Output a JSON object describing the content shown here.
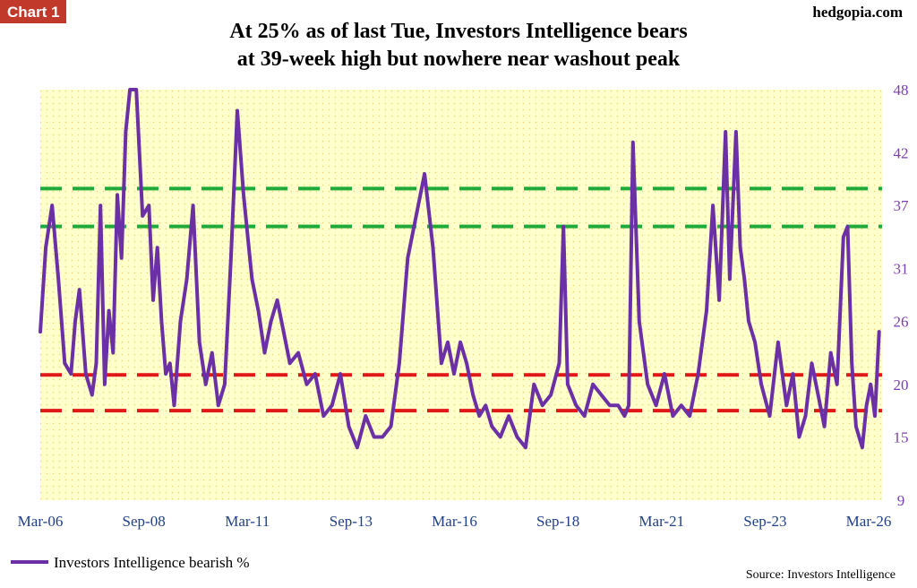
{
  "header": {
    "chart_label": "Chart 1",
    "site": "hedgopia.com",
    "title_line1": "At 25% as of last Tue, Investors Intelligence bears",
    "title_line2": "at 39-week high but nowhere near washout peak"
  },
  "footer": {
    "source": "Source: Investors Intelligence"
  },
  "colors": {
    "series": "#6b2fa6",
    "plot_bg": "#ffffcc",
    "green_line": "#1faa3a",
    "red_line": "#e01818",
    "chart_label_bg": "#c0392b",
    "y_tick": "#7a3fb0",
    "x_tick": "#1f3f8a"
  },
  "chart_data": {
    "type": "line",
    "x_ticks": [
      "Mar-06",
      "Sep-08",
      "Mar-11",
      "Sep-13",
      "Mar-16",
      "Sep-18",
      "Mar-21",
      "Sep-23",
      "Mar-26"
    ],
    "y_ticks": [
      9,
      15,
      20,
      26,
      31,
      37,
      42,
      48
    ],
    "ylim": [
      9,
      48
    ],
    "xlim": [
      2006.17,
      2026.17
    ],
    "grid": false,
    "legend_position": "bottom-left",
    "reference_lines": [
      {
        "value": 38.6,
        "color": "green"
      },
      {
        "value": 35.0,
        "color": "green"
      },
      {
        "value": 20.9,
        "color": "red"
      },
      {
        "value": 17.5,
        "color": "red"
      }
    ],
    "series": [
      {
        "name": "Investors Intelligence bearish %",
        "x": [
          2006.17,
          2006.3,
          2006.45,
          2006.6,
          2006.75,
          2006.9,
          2007.0,
          2007.1,
          2007.25,
          2007.4,
          2007.5,
          2007.6,
          2007.7,
          2007.8,
          2007.9,
          2008.0,
          2008.1,
          2008.2,
          2008.3,
          2008.45,
          2008.6,
          2008.75,
          2008.85,
          2008.95,
          2009.05,
          2009.15,
          2009.25,
          2009.35,
          2009.5,
          2009.65,
          2009.8,
          2009.95,
          2010.1,
          2010.25,
          2010.4,
          2010.55,
          2010.7,
          2010.85,
          2011.0,
          2011.2,
          2011.35,
          2011.5,
          2011.65,
          2011.8,
          2011.95,
          2012.1,
          2012.3,
          2012.5,
          2012.7,
          2012.9,
          2013.1,
          2013.3,
          2013.5,
          2013.7,
          2013.9,
          2014.1,
          2014.3,
          2014.5,
          2014.7,
          2014.9,
          2015.1,
          2015.3,
          2015.5,
          2015.7,
          2015.85,
          2016.0,
          2016.15,
          2016.3,
          2016.45,
          2016.6,
          2016.75,
          2016.9,
          2017.1,
          2017.3,
          2017.5,
          2017.7,
          2017.9,
          2018.1,
          2018.3,
          2018.5,
          2018.6,
          2018.7,
          2018.9,
          2019.1,
          2019.3,
          2019.5,
          2019.7,
          2019.9,
          2020.05,
          2020.15,
          2020.25,
          2020.4,
          2020.6,
          2020.8,
          2021.0,
          2021.2,
          2021.4,
          2021.6,
          2021.8,
          2022.0,
          2022.15,
          2022.3,
          2022.45,
          2022.55,
          2022.7,
          2022.8,
          2022.9,
          2023.0,
          2023.15,
          2023.3,
          2023.5,
          2023.7,
          2023.9,
          2024.05,
          2024.2,
          2024.35,
          2024.5,
          2024.65,
          2024.8,
          2024.95,
          2025.1,
          2025.25,
          2025.35,
          2025.45,
          2025.55,
          2025.7,
          2025.8,
          2025.9,
          2026.0,
          2026.1
        ],
        "values": [
          25,
          33,
          37,
          30,
          22,
          21,
          26,
          29,
          21,
          19,
          22,
          37,
          20,
          27,
          23,
          38,
          32,
          44,
          48,
          48,
          36,
          37,
          28,
          33,
          26,
          21,
          22,
          18,
          26,
          30,
          37,
          24,
          20,
          23,
          18,
          20,
          32,
          46,
          38,
          30,
          27,
          23,
          26,
          28,
          25,
          22,
          23,
          20,
          21,
          17,
          18,
          21,
          16,
          14,
          17,
          15,
          15,
          16,
          22,
          32,
          36,
          40,
          33,
          22,
          24,
          21,
          24,
          22,
          19,
          17,
          18,
          16,
          15,
          17,
          15,
          14,
          20,
          18,
          19,
          22,
          35,
          20,
          18,
          17,
          20,
          19,
          18,
          18,
          17,
          18,
          43,
          26,
          20,
          18,
          21,
          17,
          18,
          17,
          21,
          27,
          37,
          28,
          44,
          30,
          44,
          33,
          30,
          26,
          24,
          20,
          17,
          24,
          18,
          21,
          15,
          17,
          22,
          19,
          16,
          23,
          20,
          34,
          35,
          22,
          16,
          14,
          18,
          20,
          17,
          25
        ]
      }
    ]
  }
}
